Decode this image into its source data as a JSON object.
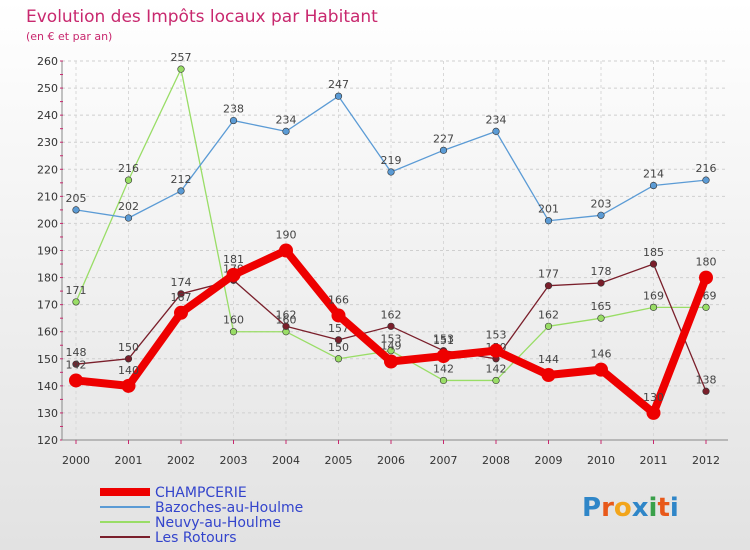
{
  "chart_data": {
    "type": "line",
    "title": "Evolution des Impôts locaux par Habitant",
    "subtitle": "(en € et par an)",
    "xlabel": "",
    "ylabel": "",
    "ylim": [
      120,
      260
    ],
    "yticks": [
      120,
      130,
      140,
      150,
      160,
      170,
      180,
      190,
      200,
      210,
      220,
      230,
      240,
      250,
      260
    ],
    "categories": [
      "2000",
      "2001",
      "2002",
      "2003",
      "2004",
      "2005",
      "2006",
      "2007",
      "2008",
      "2009",
      "2010",
      "2011",
      "2012"
    ],
    "series": [
      {
        "name": "CHAMPCERIE",
        "color": "#ee0000",
        "values": [
          142,
          140,
          167,
          181,
          190,
          166,
          149,
          151,
          153,
          144,
          146,
          130,
          180
        ]
      },
      {
        "name": "Bazoches-au-Houlme",
        "color": "#5b9bd5",
        "values": [
          205,
          202,
          212,
          238,
          234,
          247,
          219,
          227,
          234,
          201,
          203,
          214,
          216
        ]
      },
      {
        "name": "Neuvy-au-Houlme",
        "color": "#99dd66",
        "values": [
          171,
          216,
          257,
          160,
          160,
          150,
          153,
          142,
          142,
          162,
          165,
          169,
          169
        ]
      },
      {
        "name": "Les Rotours",
        "color": "#7a1f2b",
        "values": [
          148,
          150,
          174,
          179,
          162,
          157,
          162,
          153,
          150,
          177,
          178,
          185,
          138
        ]
      }
    ],
    "legend_position": "bottom-left",
    "grid": true
  },
  "logo": {
    "text": "Proxiti"
  }
}
